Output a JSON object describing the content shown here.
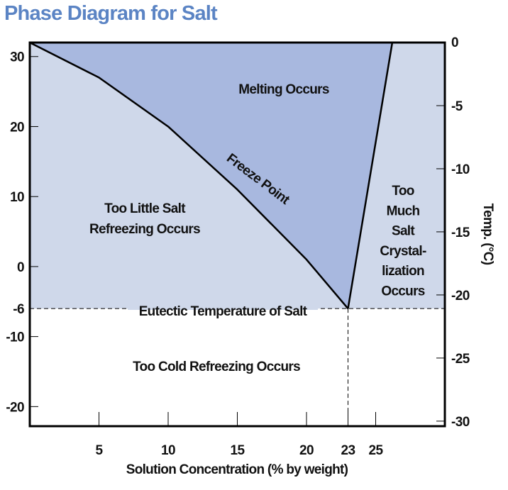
{
  "chart_data": {
    "type": "diagram",
    "title": "Phase Diagram for Salt",
    "xlabel": "Solution Concentration (% by weight)",
    "ylabel_right": "Temp. (°C)",
    "xlim": [
      0,
      30
    ],
    "ylim_left_F": [
      -22.8,
      32
    ],
    "ylim_right_C": [
      -30.4,
      0
    ],
    "x_ticks": [
      5,
      10,
      15,
      20,
      23,
      25
    ],
    "y_ticks_left": [
      30,
      20,
      10,
      0,
      -6,
      -10,
      -20
    ],
    "y_ticks_right": [
      0,
      -5,
      -10,
      -15,
      -20,
      -25,
      -30
    ],
    "freeze_curve": {
      "label": "Freeze Point",
      "x": [
        0,
        5,
        10,
        15,
        20,
        23
      ],
      "y": [
        32,
        27,
        20,
        11,
        1,
        -6
      ]
    },
    "solubility_line": {
      "x": [
        23,
        26.2
      ],
      "y": [
        -6,
        32
      ]
    },
    "eutectic": {
      "label": "Eutectic Temperature of Salt",
      "x": 23,
      "y": -6
    },
    "regions": {
      "melting": "Melting Occurs",
      "too_little": [
        "Too Little Salt",
        "Refreezing Occurs"
      ],
      "too_much": [
        "Too",
        "Much",
        "Salt",
        "Crystal-",
        "lization",
        "Occurs"
      ],
      "too_cold": "Too Cold Refreezing Occurs"
    },
    "colors": {
      "title": "#5b84c4",
      "light_region": "#cfd8ea",
      "melting_region": "#a8b8df",
      "line": "#000000"
    }
  }
}
